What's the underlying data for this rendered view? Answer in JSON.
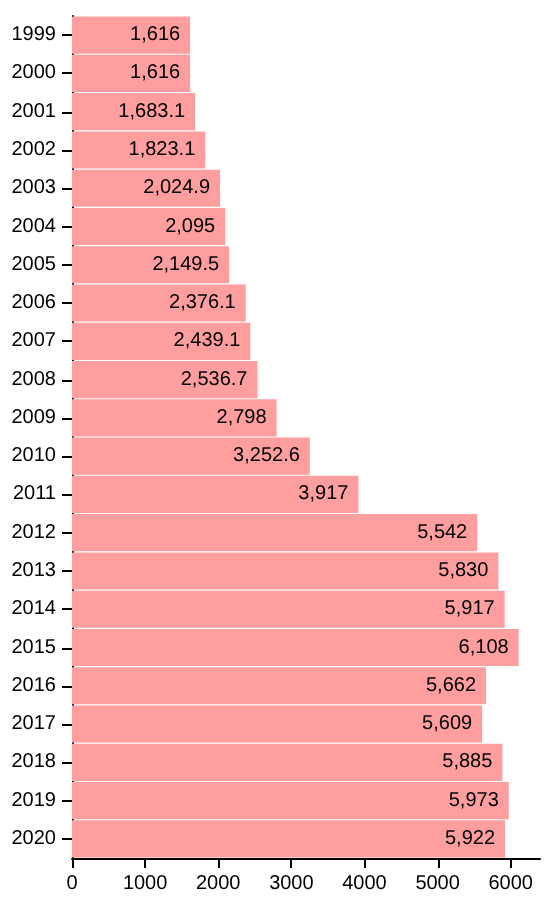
{
  "chart_data": {
    "type": "bar",
    "orientation": "horizontal",
    "categories": [
      "1999",
      "2000",
      "2001",
      "2002",
      "2003",
      "2004",
      "2005",
      "2006",
      "2007",
      "2008",
      "2009",
      "2010",
      "2011",
      "2012",
      "2013",
      "2014",
      "2015",
      "2016",
      "2017",
      "2018",
      "2019",
      "2020"
    ],
    "values": [
      1616,
      1616,
      1683.1,
      1823.1,
      2024.9,
      2095,
      2149.5,
      2376.1,
      2439.1,
      2536.7,
      2798,
      3252.6,
      3917,
      5542,
      5830,
      5917,
      6108,
      5662,
      5609,
      5885,
      5973,
      5922
    ],
    "value_labels": [
      "1,616",
      "1,616",
      "1,683.1",
      "1,823.1",
      "2,024.9",
      "2,095",
      "2,149.5",
      "2,376.1",
      "2,439.1",
      "2,536.7",
      "2,798",
      "3,252.6",
      "3,917",
      "5,542",
      "5,830",
      "5,917",
      "6,108",
      "5,662",
      "5,609",
      "5,885",
      "5,973",
      "5,922"
    ],
    "color": "#ff9e9e",
    "xlim": [
      0,
      6400
    ],
    "xticks": [
      0,
      1000,
      2000,
      3000,
      4000,
      5000,
      6000
    ],
    "grid": false
  }
}
